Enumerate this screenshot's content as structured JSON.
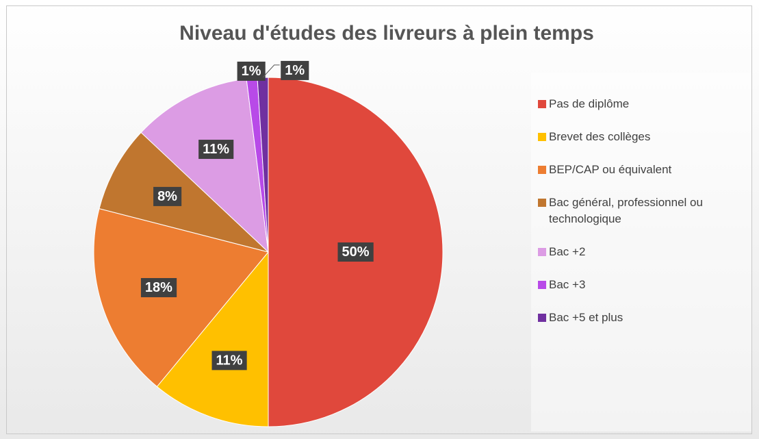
{
  "chart_data": {
    "type": "pie",
    "title": "Niveau d'études des livreurs à plein temps",
    "categories": [
      "Pas de diplôme",
      "Brevet des collèges",
      "BEP/CAP ou équivalent",
      "Bac général, professionnel ou technologique",
      "Bac +2",
      "Bac +3",
      "Bac +5 et plus"
    ],
    "values": [
      50,
      11,
      18,
      8,
      11,
      1,
      1
    ],
    "value_labels": [
      "50%",
      "11%",
      "18%",
      "8%",
      "11%",
      "1%",
      "1%"
    ],
    "colors": [
      "#e0483c",
      "#ffc000",
      "#ed7d31",
      "#c0762f",
      "#dc9ce4",
      "#b84ae8",
      "#7030a0"
    ],
    "legend": "right"
  }
}
